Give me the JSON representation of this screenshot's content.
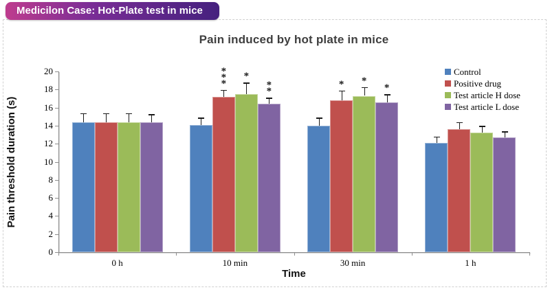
{
  "header": {
    "badge": "Medicilon Case: Hot-Plate test in mice",
    "badge_gradient_left": "#be3c8e",
    "badge_gradient_right": "#45217e"
  },
  "chart_data": {
    "type": "bar",
    "title": "Pain induced by hot plate in mice",
    "xlabel": "Time",
    "ylabel": "Pain threshold duration (s)",
    "ylim": [
      0,
      20
    ],
    "ytick_step": 2,
    "grid": false,
    "legend_position": "top-right",
    "error_bars": "upper",
    "categories": [
      "0 h",
      "10 min",
      "30 min",
      "1 h"
    ],
    "series": [
      {
        "name": "Control",
        "color": "#4f81bd",
        "values": [
          14.4,
          14.1,
          14.0,
          12.1
        ],
        "errors": [
          0.9,
          0.7,
          0.8,
          0.6
        ],
        "significance": [
          "",
          "",
          "",
          ""
        ]
      },
      {
        "name": "Positive drug",
        "color": "#c0504d",
        "values": [
          14.4,
          17.2,
          16.8,
          13.6
        ],
        "errors": [
          0.9,
          0.7,
          1.0,
          0.7
        ],
        "significance": [
          "",
          "***",
          "*",
          ""
        ]
      },
      {
        "name": "Test article H dose",
        "color": "#9bbb59",
        "values": [
          14.4,
          17.5,
          17.3,
          13.2
        ],
        "errors": [
          0.9,
          1.2,
          0.9,
          0.7
        ],
        "significance": [
          "",
          "*",
          "*",
          ""
        ]
      },
      {
        "name": "Test article L dose",
        "color": "#8064a2",
        "values": [
          14.4,
          16.4,
          16.6,
          12.7
        ],
        "errors": [
          0.8,
          0.6,
          0.8,
          0.6
        ],
        "significance": [
          "",
          "**",
          "*",
          ""
        ]
      }
    ]
  }
}
